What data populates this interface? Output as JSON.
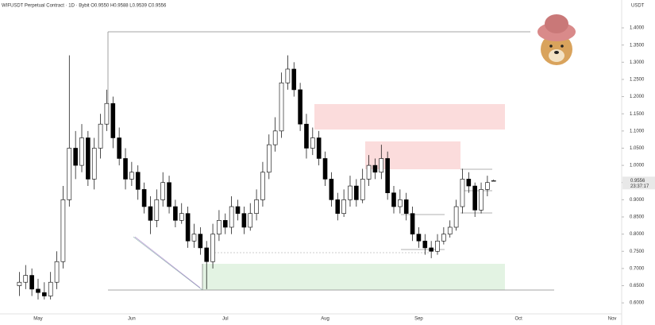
{
  "chart_data": {
    "type": "candlestick",
    "title": "WIFUSDT Perpetual Contract · 1D · Bybit  O0.9550  H0.9588  L0.9539  C0.9556",
    "y_label": "USDT",
    "countdown": "23:37:17",
    "up_color": "#ffffff",
    "down_color": "#000000",
    "grid": false,
    "categories": [
      null,
      null,
      null,
      "May",
      null,
      null,
      null,
      null,
      null,
      null,
      null,
      null,
      null,
      null,
      null,
      null,
      null,
      null,
      "Jun",
      null,
      null,
      null,
      null,
      null,
      null,
      null,
      null,
      null,
      null,
      null,
      null,
      null,
      null,
      "Jul",
      null,
      null,
      null,
      null,
      null,
      null,
      null,
      null,
      null,
      null,
      null,
      null,
      null,
      null,
      null,
      "Aug",
      null,
      null,
      null,
      null,
      null,
      null,
      null,
      null,
      null,
      null,
      null,
      null,
      null,
      null,
      "Sep",
      null,
      null,
      null,
      null,
      null,
      null,
      null,
      null,
      null,
      null,
      null,
      null,
      null,
      null,
      null,
      "Oct",
      null,
      null,
      null,
      null,
      null,
      null,
      null,
      null,
      null,
      null,
      null,
      null,
      null,
      null,
      "Nov"
    ],
    "open": [
      0.65,
      0.66,
      0.68,
      0.64,
      0.63,
      0.62,
      0.66,
      0.72,
      0.9,
      1.05,
      1.0,
      1.08,
      0.96,
      1.05,
      1.12,
      1.18,
      1.08,
      1.02,
      0.96,
      0.98,
      0.93,
      0.88,
      0.84,
      0.9,
      0.95,
      0.88,
      0.84,
      0.86,
      0.78,
      0.8,
      0.76,
      0.72,
      0.8,
      0.84,
      0.82,
      0.88,
      0.86,
      0.82,
      0.86,
      0.9,
      0.98,
      1.06,
      1.1,
      1.24,
      1.28,
      1.22,
      1.12,
      1.05,
      1.08,
      1.02,
      0.96,
      0.9,
      0.86,
      0.9,
      0.94,
      0.9,
      0.96,
      1.0,
      0.98,
      1.02,
      0.92,
      0.88,
      0.9,
      0.86,
      0.8,
      0.78,
      0.76,
      0.75,
      0.78,
      0.8,
      0.82,
      0.88,
      0.96,
      0.94,
      0.87,
      0.93,
      0.955,
      null,
      null,
      null,
      null,
      null,
      null,
      null,
      null,
      null,
      null,
      null,
      null,
      null,
      null,
      null,
      null,
      null,
      null,
      null
    ],
    "high": [
      0.69,
      0.71,
      0.7,
      0.67,
      0.66,
      0.69,
      0.75,
      0.94,
      1.32,
      1.1,
      1.12,
      1.1,
      1.08,
      1.15,
      1.22,
      1.2,
      1.11,
      1.05,
      1.01,
      1.0,
      0.95,
      0.91,
      0.93,
      0.98,
      0.97,
      0.9,
      0.89,
      0.88,
      0.83,
      0.82,
      0.78,
      0.83,
      0.87,
      0.86,
      0.91,
      0.9,
      0.88,
      0.89,
      0.93,
      1.01,
      1.09,
      1.14,
      1.27,
      1.32,
      1.3,
      1.24,
      1.15,
      1.11,
      1.1,
      1.04,
      0.98,
      0.92,
      0.93,
      0.97,
      0.96,
      0.99,
      1.03,
      1.02,
      1.06,
      1.04,
      0.94,
      0.93,
      0.92,
      0.88,
      0.82,
      0.8,
      0.78,
      0.8,
      0.82,
      0.84,
      0.9,
      0.99,
      0.98,
      0.95,
      0.95,
      0.97,
      0.9588,
      null,
      null,
      null,
      null,
      null,
      null,
      null,
      null,
      null,
      null,
      null,
      null,
      null,
      null,
      null,
      null,
      null,
      null,
      null
    ],
    "low": [
      0.62,
      0.64,
      0.62,
      0.61,
      0.61,
      0.61,
      0.64,
      0.7,
      0.88,
      0.96,
      0.98,
      0.94,
      0.93,
      1.02,
      1.1,
      1.05,
      1.0,
      0.93,
      0.94,
      0.9,
      0.86,
      0.8,
      0.82,
      0.88,
      0.86,
      0.82,
      0.83,
      0.76,
      0.76,
      0.74,
      0.64,
      0.7,
      0.78,
      0.8,
      0.8,
      0.84,
      0.8,
      0.81,
      0.84,
      0.88,
      0.96,
      1.04,
      1.08,
      1.22,
      1.2,
      1.1,
      1.02,
      1.03,
      1.0,
      0.94,
      0.88,
      0.84,
      0.85,
      0.88,
      0.88,
      0.89,
      0.94,
      0.96,
      0.96,
      0.9,
      0.86,
      0.86,
      0.84,
      0.78,
      0.76,
      0.74,
      0.73,
      0.74,
      0.77,
      0.79,
      0.81,
      0.86,
      0.92,
      0.85,
      0.86,
      0.91,
      0.9539,
      null,
      null,
      null,
      null,
      null,
      null,
      null,
      null,
      null,
      null,
      null,
      null,
      null,
      null,
      null,
      null,
      null,
      null,
      null
    ],
    "close": [
      0.66,
      0.68,
      0.64,
      0.63,
      0.62,
      0.66,
      0.72,
      0.9,
      1.05,
      1.0,
      1.08,
      0.96,
      1.05,
      1.12,
      1.18,
      1.08,
      1.02,
      0.96,
      0.98,
      0.93,
      0.88,
      0.84,
      0.9,
      0.95,
      0.88,
      0.84,
      0.86,
      0.78,
      0.8,
      0.76,
      0.72,
      0.8,
      0.84,
      0.82,
      0.88,
      0.86,
      0.82,
      0.86,
      0.9,
      0.98,
      1.06,
      1.1,
      1.24,
      1.28,
      1.22,
      1.12,
      1.05,
      1.08,
      1.02,
      0.96,
      0.9,
      0.86,
      0.9,
      0.94,
      0.9,
      0.96,
      1.0,
      0.98,
      1.02,
      0.92,
      0.88,
      0.9,
      0.86,
      0.8,
      0.78,
      0.76,
      0.75,
      0.78,
      0.8,
      0.82,
      0.88,
      0.96,
      0.94,
      0.87,
      0.93,
      0.95,
      0.9556,
      null,
      null,
      null,
      null,
      null,
      null,
      null,
      null,
      null,
      null,
      null,
      null,
      null,
      null,
      null,
      null,
      null,
      null,
      null
    ],
    "ylim": [
      0.568,
      1.481
    ],
    "yticks": [
      {
        "value": 0.6,
        "label": "0.6000"
      },
      {
        "value": 0.65,
        "label": "0.6500"
      },
      {
        "value": 0.7,
        "label": "0.7000"
      },
      {
        "value": 0.75,
        "label": "0.7500"
      },
      {
        "value": 0.8,
        "label": "0.8000"
      },
      {
        "value": 0.85,
        "label": "0.8500"
      },
      {
        "value": 0.9,
        "label": "0.9000"
      },
      {
        "value": 0.95,
        "label": "0.9500"
      },
      {
        "value": 1.0,
        "label": "1.0000"
      },
      {
        "value": 1.05,
        "label": "1.0500"
      },
      {
        "value": 1.1,
        "label": "1.1000"
      },
      {
        "value": 1.15,
        "label": "1.1500"
      },
      {
        "value": 1.2,
        "label": "1.2000"
      },
      {
        "value": 1.25,
        "label": "1.2500"
      },
      {
        "value": 1.3,
        "label": "1.3000"
      },
      {
        "value": 1.35,
        "label": "1.3500"
      },
      {
        "value": 1.4,
        "label": "1.4000"
      }
    ]
  }
}
